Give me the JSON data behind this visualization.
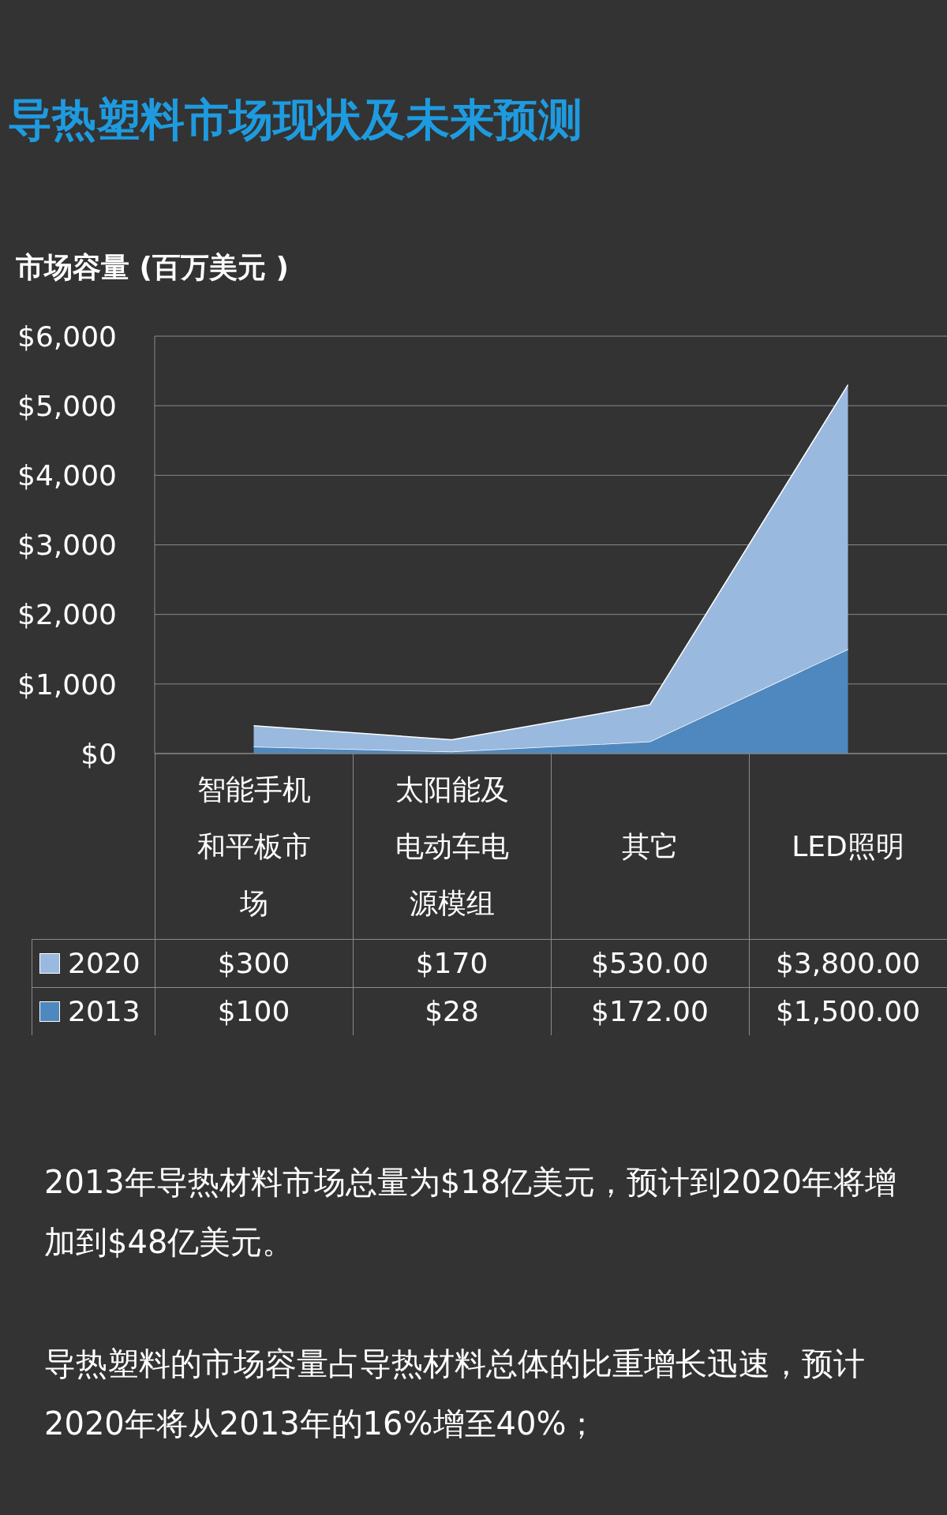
{
  "chart_data": {
    "type": "area",
    "title": "导热塑料市场现状及未来预测",
    "ylabel": "市场容量 (百万美元 )",
    "categories": [
      "智能手机和平板市场",
      "太阳能及电动车电源模组",
      "其它",
      "LED照明"
    ],
    "stacked": true,
    "ylim": [
      0,
      6000
    ],
    "yticks": [
      {
        "value": 0,
        "label": "$0"
      },
      {
        "value": 1000,
        "label": "$1,000"
      },
      {
        "value": 2000,
        "label": "$2,000"
      },
      {
        "value": 3000,
        "label": "$3,000"
      },
      {
        "value": 4000,
        "label": "$4,000"
      },
      {
        "value": 5000,
        "label": "$5,000"
      },
      {
        "value": 6000,
        "label": "$6,000"
      }
    ],
    "grid": "y",
    "legend": "bottom",
    "series": [
      {
        "name": "2013",
        "color": "#4f88be",
        "values": [
          100,
          28,
          172,
          1500
        ],
        "value_labels": [
          "$100",
          "$28",
          "$172.00",
          "$1,500.00"
        ]
      },
      {
        "name": "2020",
        "color": "#9ab9df",
        "values": [
          300,
          170,
          530,
          3800
        ],
        "value_labels": [
          "$300",
          "$170",
          "$530.00",
          "$3,800.00"
        ]
      }
    ],
    "annotations": [
      "2013年导热材料市场总量为$18亿美元，预计到2020年将增加到$48亿美元。",
      "导热塑料的市场容量占导热材料总体的比重增长迅速，预计2020年将从2013年的16%增至40%；"
    ]
  }
}
